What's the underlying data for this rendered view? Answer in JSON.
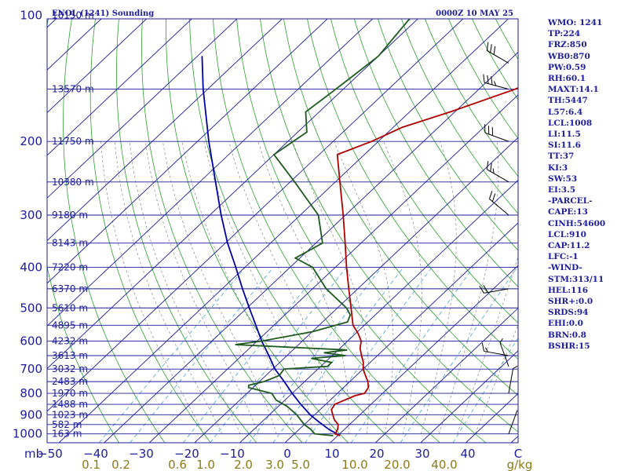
{
  "header": {
    "station": "ENOL (1241) Sounding",
    "time": "0000Z 10 MAY 25"
  },
  "colors": {
    "axis": "#1c1c9c",
    "isobar": "#1c1c9c",
    "isotherm": "#1c1c9c",
    "dry_adiabat": "#2ea02e",
    "moist_adiabat": "#8a8a8a",
    "mixing_ratio": "#4aa4d4",
    "temperature": "#b00000",
    "dewpoint": "#1e5a1e",
    "parcel": "#0000a8",
    "wind": "#000000",
    "mixing_label": "#8a7a1a"
  },
  "stats": [
    "WMO: 1241",
    "TP:224",
    "FRZ:850",
    "WB0:870",
    "PW:0.59",
    "RH:60.1",
    "MAXT:14.1",
    "TH:5447",
    "L57:6.4",
    "LCL:1008",
    "LI:11.5",
    "SI:11.6",
    "TT:37",
    "KI:3",
    "SW:53",
    "EI:3.5",
    "-PARCEL-",
    "CAPE:13",
    "CINH:54600",
    "LCL:910",
    "CAP:11.2",
    "LFC:-1",
    "-WIND-",
    "STM:313/11",
    "HEL:116",
    "SHR+:0.0",
    "SRDS:94",
    "EHI:0.0",
    "BRN:0.8",
    "BSHR:15"
  ],
  "chart_data": {
    "type": "skew-t",
    "title": "ENOL (1241) Sounding",
    "subtitle": "0000Z 10 MAY 25",
    "pressure_ticks": [
      100,
      200,
      300,
      400,
      500,
      600,
      700,
      800,
      900,
      1000
    ],
    "temperature_ticks": [
      -50,
      -40,
      -30,
      -20,
      -10,
      0,
      10,
      20,
      30,
      40
    ],
    "temperature_tick_labels": [
      "−50",
      "−40",
      "−30",
      "−20",
      "−10",
      "0",
      "10",
      "20",
      "30",
      "40"
    ],
    "pressure_unit": "mb",
    "mixing_ratio_unit": "g/kg",
    "mixing_ratio_labels": [
      "0.1",
      "0.2",
      "0.6",
      "1.0",
      "2.0",
      "3.0",
      "5.0",
      "10.0",
      "20.0",
      "40.0"
    ],
    "mixing_ratio_values": [
      0.1,
      0.2,
      0.6,
      1.0,
      2.0,
      3.0,
      5.0,
      10.0,
      20.0,
      40.0
    ],
    "height_labels": [
      {
        "p": 100,
        "label": "16150 m"
      },
      {
        "p": 150,
        "label": "13570 m"
      },
      {
        "p": 200,
        "label": "11750 m"
      },
      {
        "p": 250,
        "label": "10380 m"
      },
      {
        "p": 300,
        "label": "9180 m"
      },
      {
        "p": 350,
        "label": "8143 m"
      },
      {
        "p": 400,
        "label": "7220 m"
      },
      {
        "p": 450,
        "label": "6370 m"
      },
      {
        "p": 500,
        "label": "5610 m"
      },
      {
        "p": 550,
        "label": "4895 m"
      },
      {
        "p": 600,
        "label": "4232 m"
      },
      {
        "p": 650,
        "label": "3613 m"
      },
      {
        "p": 700,
        "label": "3032 m"
      },
      {
        "p": 750,
        "label": "2483 m"
      },
      {
        "p": 800,
        "label": "1970 m"
      },
      {
        "p": 850,
        "label": "1488 m"
      },
      {
        "p": 900,
        "label": "1023 m"
      },
      {
        "p": 950,
        "label": "582 m"
      },
      {
        "p": 1000,
        "label": "163 m"
      }
    ],
    "temperature": [
      [
        1010,
        10.5
      ],
      [
        1000,
        9.0
      ],
      [
        975,
        8.5
      ],
      [
        950,
        7.5
      ],
      [
        925,
        5.5
      ],
      [
        900,
        4.0
      ],
      [
        875,
        2.5
      ],
      [
        850,
        2.0
      ],
      [
        825,
        3.5
      ],
      [
        810,
        4.5
      ],
      [
        800,
        6.0
      ],
      [
        775,
        5.5
      ],
      [
        750,
        4.0
      ],
      [
        725,
        2.0
      ],
      [
        700,
        0.0
      ],
      [
        675,
        -1.5
      ],
      [
        650,
        -3.5
      ],
      [
        625,
        -5.5
      ],
      [
        600,
        -7.0
      ],
      [
        575,
        -9.5
      ],
      [
        550,
        -12.5
      ],
      [
        500,
        -17.0
      ],
      [
        450,
        -22.0
      ],
      [
        400,
        -27.5
      ],
      [
        350,
        -33.5
      ],
      [
        300,
        -40.5
      ],
      [
        250,
        -49.0
      ],
      [
        215,
        -56.0
      ],
      [
        200,
        -51.5
      ],
      [
        185,
        -48.0
      ],
      [
        170,
        -41.0
      ],
      [
        150,
        -32.0
      ],
      [
        120,
        -20.0
      ],
      [
        100,
        -12.0
      ]
    ],
    "dewpoint": [
      [
        1010,
        9.0
      ],
      [
        1000,
        4.5
      ],
      [
        975,
        2.5
      ],
      [
        950,
        0.0
      ],
      [
        900,
        -4.0
      ],
      [
        860,
        -8.0
      ],
      [
        830,
        -12.0
      ],
      [
        800,
        -14.5
      ],
      [
        775,
        -21.0
      ],
      [
        765,
        -21.5
      ],
      [
        750,
        -19.0
      ],
      [
        725,
        -17.0
      ],
      [
        700,
        -17.5
      ],
      [
        690,
        -8.5
      ],
      [
        675,
        -8.5
      ],
      [
        660,
        -14.0
      ],
      [
        650,
        -7.0
      ],
      [
        640,
        -12.5
      ],
      [
        630,
        -8.0
      ],
      [
        612,
        -34.0
      ],
      [
        600,
        -29.0
      ],
      [
        570,
        -20.0
      ],
      [
        540,
        -14.5
      ],
      [
        520,
        -15.5
      ],
      [
        500,
        -18.0
      ],
      [
        450,
        -27.0
      ],
      [
        400,
        -35.0
      ],
      [
        380,
        -41.0
      ],
      [
        350,
        -38.5
      ],
      [
        300,
        -46.0
      ],
      [
        250,
        -59.0
      ],
      [
        215,
        -70.0
      ],
      [
        190,
        -68.0
      ],
      [
        170,
        -73.0
      ],
      [
        155,
        -72.0
      ],
      [
        140,
        -71.0
      ],
      [
        125,
        -70.0
      ],
      [
        100,
        -72.0
      ]
    ],
    "parcel": [
      [
        1010,
        10.5
      ],
      [
        975,
        6.5
      ],
      [
        950,
        4.0
      ],
      [
        925,
        1.5
      ],
      [
        900,
        -1.0
      ],
      [
        850,
        -5.5
      ],
      [
        800,
        -10.0
      ],
      [
        750,
        -14.5
      ],
      [
        700,
        -19.5
      ],
      [
        650,
        -24.0
      ],
      [
        600,
        -29.0
      ],
      [
        550,
        -34.0
      ],
      [
        500,
        -39.5
      ],
      [
        450,
        -45.5
      ],
      [
        400,
        -52.0
      ],
      [
        350,
        -59.5
      ],
      [
        300,
        -67.5
      ],
      [
        250,
        -76.5
      ],
      [
        200,
        -87.5
      ],
      [
        150,
        -101.0
      ],
      [
        125,
        -109.0
      ]
    ],
    "wind": [
      {
        "p": 1000,
        "dir": 20,
        "spd": 2
      },
      {
        "p": 800,
        "dir": 10,
        "spd": 5
      },
      {
        "p": 690,
        "dir": 340,
        "spd": 8
      },
      {
        "p": 650,
        "dir": 280,
        "spd": 15
      },
      {
        "p": 450,
        "dir": 260,
        "spd": 20
      },
      {
        "p": 300,
        "dir": 310,
        "spd": 20
      },
      {
        "p": 250,
        "dir": 300,
        "spd": 25
      },
      {
        "p": 200,
        "dir": 290,
        "spd": 30
      },
      {
        "p": 150,
        "dir": 285,
        "spd": 35
      },
      {
        "p": 130,
        "dir": 300,
        "spd": 30
      }
    ]
  }
}
